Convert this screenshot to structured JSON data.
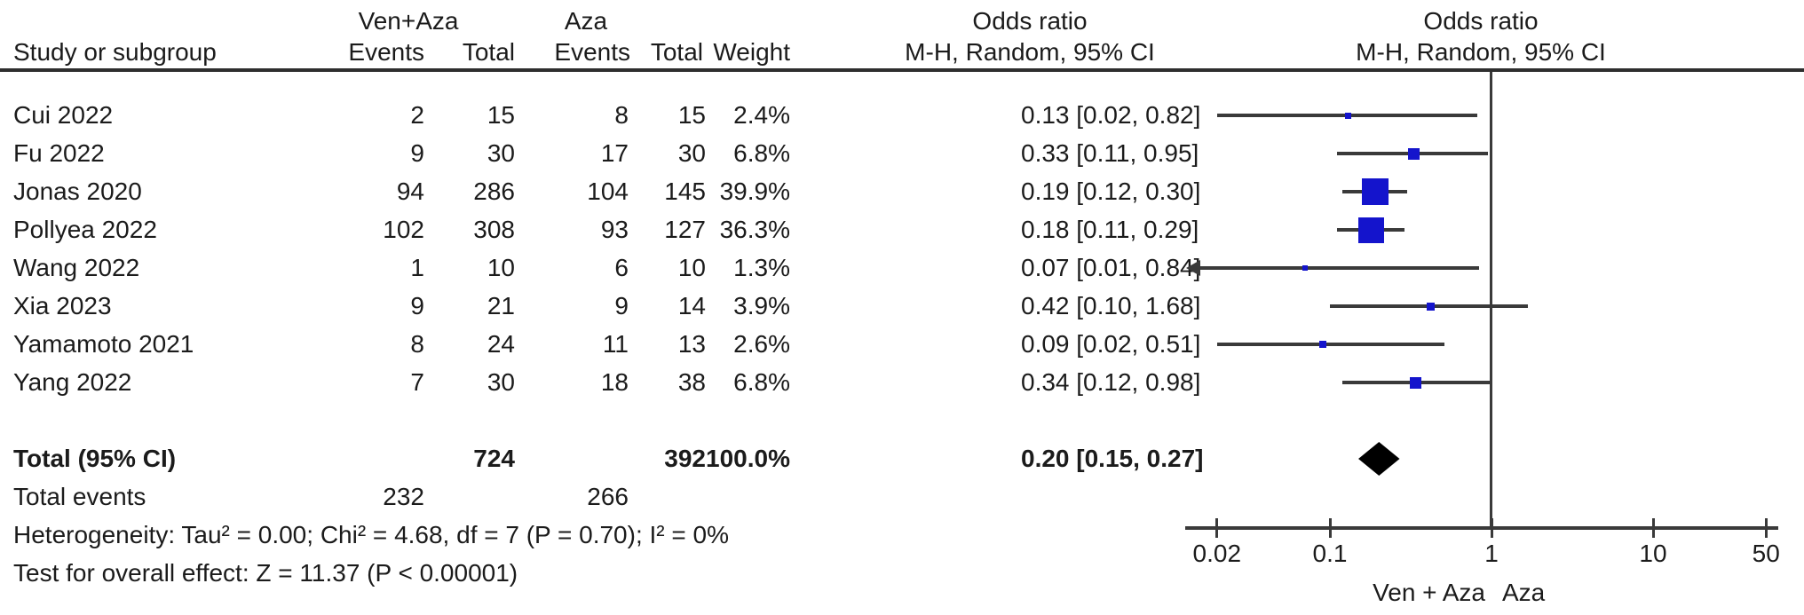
{
  "table": {
    "header": {
      "group1": "Ven+Aza",
      "group2": "Aza",
      "col_study": "Study or subgroup",
      "col_events": "Events",
      "col_total": "Total",
      "col_weight": "Weight",
      "or_title": "Odds ratio",
      "or_subtitle": "M-H, Random, 95% CI"
    }
  },
  "chart_data": {
    "type": "forest",
    "x_scale": "log",
    "axis": {
      "min": 0.02,
      "max": 50,
      "ticks": [
        0.02,
        0.1,
        1,
        10,
        50
      ],
      "tick_labels": [
        "0.02",
        "0.1",
        "1",
        "10",
        "50"
      ]
    },
    "favours_left": "Ven + Aza",
    "favours_right": "Aza",
    "studies": [
      {
        "study": "Cui 2022",
        "events1": 2,
        "total1": 15,
        "events2": 8,
        "total2": 15,
        "weight": "2.4%",
        "weight_pct": 2.4,
        "or": 0.13,
        "lo": 0.02,
        "hi": 0.82,
        "ci_text": "0.13 [0.02, 0.82]"
      },
      {
        "study": "Fu 2022",
        "events1": 9,
        "total1": 30,
        "events2": 17,
        "total2": 30,
        "weight": "6.8%",
        "weight_pct": 6.8,
        "or": 0.33,
        "lo": 0.11,
        "hi": 0.95,
        "ci_text": "0.33 [0.11, 0.95]"
      },
      {
        "study": "Jonas 2020",
        "events1": 94,
        "total1": 286,
        "events2": 104,
        "total2": 145,
        "weight": "39.9%",
        "weight_pct": 39.9,
        "or": 0.19,
        "lo": 0.12,
        "hi": 0.3,
        "ci_text": "0.19 [0.12, 0.30]"
      },
      {
        "study": "Pollyea 2022",
        "events1": 102,
        "total1": 308,
        "events2": 93,
        "total2": 127,
        "weight": "36.3%",
        "weight_pct": 36.3,
        "or": 0.18,
        "lo": 0.11,
        "hi": 0.29,
        "ci_text": "0.18 [0.11, 0.29]"
      },
      {
        "study": "Wang 2022",
        "events1": 1,
        "total1": 10,
        "events2": 6,
        "total2": 10,
        "weight": "1.3%",
        "weight_pct": 1.3,
        "or": 0.07,
        "lo": 0.01,
        "hi": 0.84,
        "ci_text": "0.07 [0.01, 0.84]"
      },
      {
        "study": "Xia 2023",
        "events1": 9,
        "total1": 21,
        "events2": 9,
        "total2": 14,
        "weight": "3.9%",
        "weight_pct": 3.9,
        "or": 0.42,
        "lo": 0.1,
        "hi": 1.68,
        "ci_text": "0.42 [0.10, 1.68]"
      },
      {
        "study": "Yamamoto 2021",
        "events1": 8,
        "total1": 24,
        "events2": 11,
        "total2": 13,
        "weight": "2.6%",
        "weight_pct": 2.6,
        "or": 0.09,
        "lo": 0.02,
        "hi": 0.51,
        "ci_text": "0.09 [0.02, 0.51]"
      },
      {
        "study": "Yang 2022",
        "events1": 7,
        "total1": 30,
        "events2": 18,
        "total2": 38,
        "weight": "6.8%",
        "weight_pct": 6.8,
        "or": 0.34,
        "lo": 0.12,
        "hi": 0.98,
        "ci_text": "0.34 [0.12, 0.98]"
      }
    ],
    "total": {
      "label": "Total (95% CI)",
      "total1": 724,
      "total2": 392,
      "weight": "100.0%",
      "or": 0.2,
      "lo": 0.15,
      "hi": 0.27,
      "ci_text": "0.20 [0.15, 0.27]"
    },
    "total_events": {
      "label": "Total events",
      "events1": 232,
      "events2": 266
    },
    "heterogeneity": "Heterogeneity: Tau² = 0.00; Chi² = 4.68, df = 7 (P = 0.70); I² = 0%",
    "overall_effect": "Test for overall effect: Z = 11.37 (P < 0.00001)"
  },
  "colors": {
    "square_blue": "#1414cc",
    "diamond_black": "#000000",
    "line_gray": "#3a3a3a",
    "text": "#1b1b1b"
  }
}
